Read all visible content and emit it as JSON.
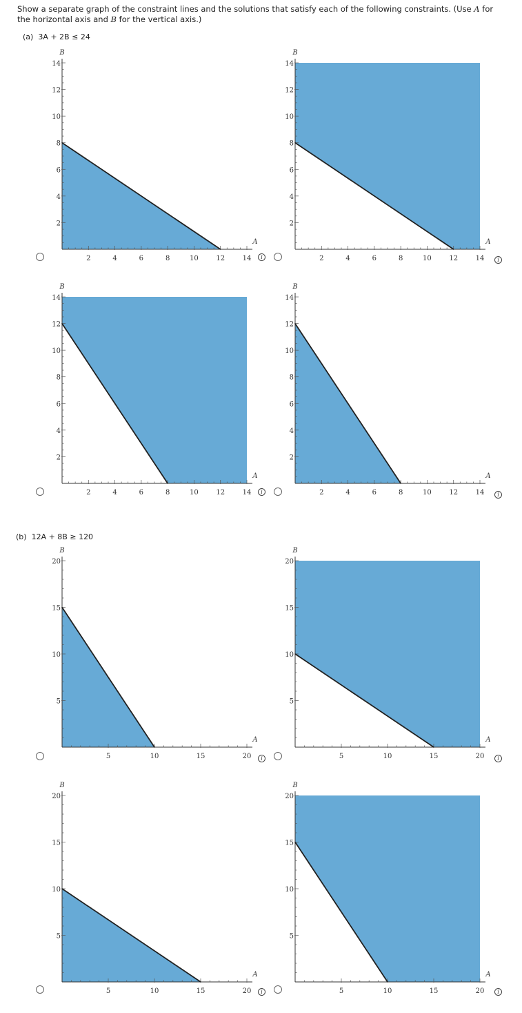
{
  "instructions": {
    "text_1": "Show a separate graph of the constraint lines and the solutions that satisfy each of the following constraints. (Use ",
    "var_a": "A",
    "text_2": " for the horizontal axis and ",
    "var_b": "B",
    "text_3": " for the vertical axis.)"
  },
  "parts": [
    {
      "label": "(a)",
      "constraint": "3A + 2B ≤ 24"
    },
    {
      "label": "(b)",
      "constraint": "12A + 8B ≥ 120"
    }
  ],
  "info_icon_glyph": "i",
  "fill_color": "#67aad6",
  "line_color": "#222222",
  "chart_data": [
    {
      "type": "area",
      "part": "(a)",
      "option": 1,
      "xlabel": "A",
      "ylabel": "B",
      "xlim": [
        0,
        14
      ],
      "ylim": [
        0,
        14
      ],
      "xticks": [
        2,
        4,
        6,
        8,
        10,
        12,
        14
      ],
      "yticks": [
        2,
        4,
        6,
        8,
        10,
        12,
        14
      ],
      "line": [
        [
          0,
          8
        ],
        [
          12,
          0
        ]
      ],
      "shade": "below"
    },
    {
      "type": "area",
      "part": "(a)",
      "option": 2,
      "xlabel": "A",
      "ylabel": "B",
      "xlim": [
        0,
        14
      ],
      "ylim": [
        0,
        14
      ],
      "xticks": [
        2,
        4,
        6,
        8,
        10,
        12,
        14
      ],
      "yticks": [
        2,
        4,
        6,
        8,
        10,
        12,
        14
      ],
      "line": [
        [
          0,
          8
        ],
        [
          12,
          0
        ]
      ],
      "shade": "above"
    },
    {
      "type": "area",
      "part": "(a)",
      "option": 3,
      "xlabel": "A",
      "ylabel": "B",
      "xlim": [
        0,
        14
      ],
      "ylim": [
        0,
        14
      ],
      "xticks": [
        2,
        4,
        6,
        8,
        10,
        12,
        14
      ],
      "yticks": [
        2,
        4,
        6,
        8,
        10,
        12,
        14
      ],
      "line": [
        [
          0,
          12
        ],
        [
          8,
          0
        ]
      ],
      "shade": "above"
    },
    {
      "type": "area",
      "part": "(a)",
      "option": 4,
      "xlabel": "A",
      "ylabel": "B",
      "xlim": [
        0,
        14
      ],
      "ylim": [
        0,
        14
      ],
      "xticks": [
        2,
        4,
        6,
        8,
        10,
        12,
        14
      ],
      "yticks": [
        2,
        4,
        6,
        8,
        10,
        12,
        14
      ],
      "line": [
        [
          0,
          12
        ],
        [
          8,
          0
        ]
      ],
      "shade": "below"
    },
    {
      "type": "area",
      "part": "(b)",
      "option": 1,
      "xlabel": "A",
      "ylabel": "B",
      "xlim": [
        0,
        20
      ],
      "ylim": [
        0,
        20
      ],
      "xticks": [
        5,
        10,
        15,
        20
      ],
      "yticks": [
        5,
        10,
        15,
        20
      ],
      "line": [
        [
          0,
          15
        ],
        [
          10,
          0
        ]
      ],
      "shade": "below"
    },
    {
      "type": "area",
      "part": "(b)",
      "option": 2,
      "xlabel": "A",
      "ylabel": "B",
      "xlim": [
        0,
        20
      ],
      "ylim": [
        0,
        20
      ],
      "xticks": [
        5,
        10,
        15,
        20
      ],
      "yticks": [
        5,
        10,
        15,
        20
      ],
      "line": [
        [
          0,
          10
        ],
        [
          15,
          0
        ]
      ],
      "shade": "above"
    },
    {
      "type": "area",
      "part": "(b)",
      "option": 3,
      "xlabel": "A",
      "ylabel": "B",
      "xlim": [
        0,
        20
      ],
      "ylim": [
        0,
        20
      ],
      "xticks": [
        5,
        10,
        15,
        20
      ],
      "yticks": [
        5,
        10,
        15,
        20
      ],
      "line": [
        [
          0,
          10
        ],
        [
          15,
          0
        ]
      ],
      "shade": "below"
    },
    {
      "type": "area",
      "part": "(b)",
      "option": 4,
      "xlabel": "A",
      "ylabel": "B",
      "xlim": [
        0,
        20
      ],
      "ylim": [
        0,
        20
      ],
      "xticks": [
        5,
        10,
        15,
        20
      ],
      "yticks": [
        5,
        10,
        15,
        20
      ],
      "line": [
        [
          0,
          15
        ],
        [
          10,
          0
        ]
      ],
      "shade": "above"
    }
  ]
}
